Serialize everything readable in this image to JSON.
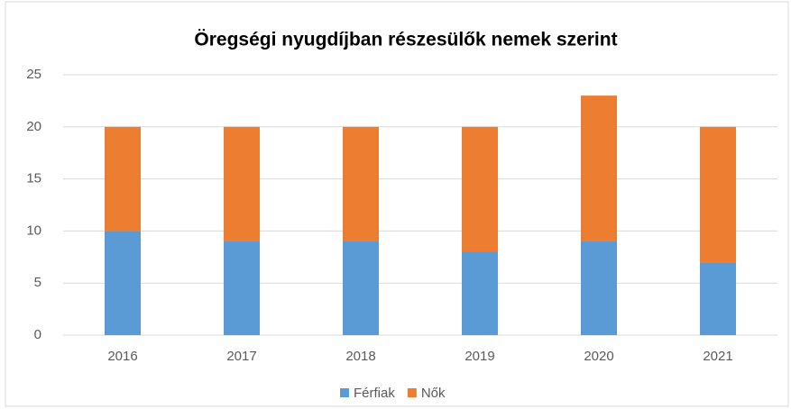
{
  "chart_data": {
    "type": "stacked_bar",
    "title": "Öregségi nyugdíjban  részesülők nemek szerint",
    "categories": [
      "2016",
      "2017",
      "2018",
      "2019",
      "2020",
      "2021"
    ],
    "series": [
      {
        "name": "Férfiak",
        "color": "#5b9bd5",
        "values": [
          10,
          9,
          9,
          8,
          9,
          7
        ]
      },
      {
        "name": "Nők",
        "color": "#ed7d31",
        "values": [
          10,
          11,
          11,
          12,
          14,
          13
        ]
      }
    ],
    "ylim": [
      0,
      25
    ],
    "yticks": [
      0,
      5,
      10,
      15,
      20,
      25
    ],
    "grid": true,
    "legend": "bottom"
  }
}
